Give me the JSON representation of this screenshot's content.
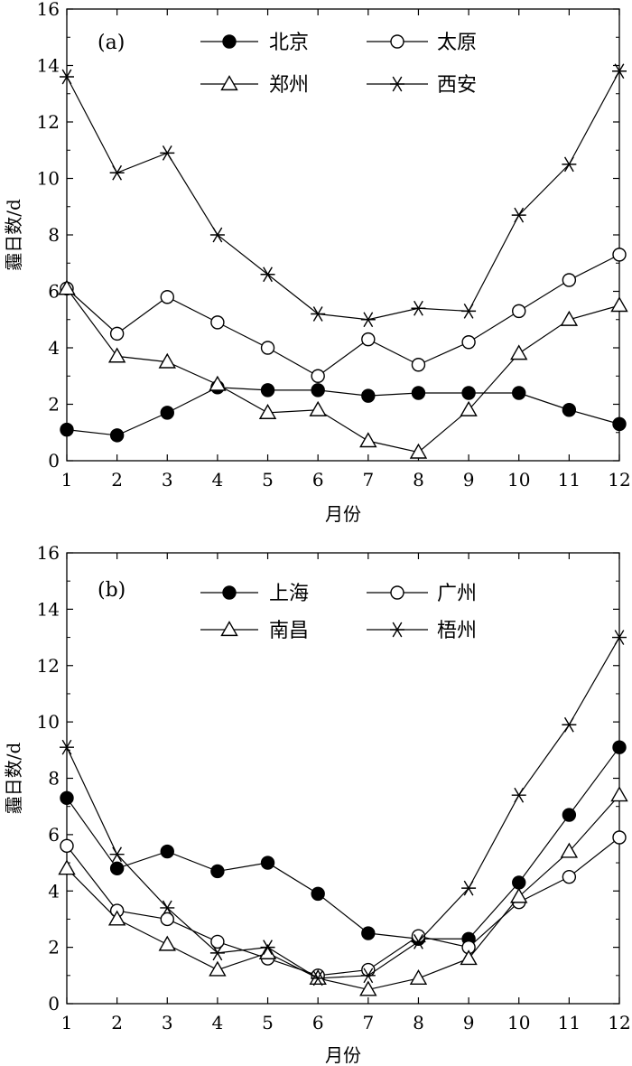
{
  "chart_data": [
    {
      "type": "line",
      "panel_label": "(a)",
      "xlabel": "月份",
      "ylabel": "霾日数/d",
      "categories": [
        1,
        2,
        3,
        4,
        5,
        6,
        7,
        8,
        9,
        10,
        11,
        12
      ],
      "x_ticks": [
        "1",
        "2",
        "3",
        "4",
        "5",
        "6",
        "7",
        "8",
        "9",
        "10",
        "11",
        "12"
      ],
      "y_ticks": [
        "0",
        "2",
        "4",
        "6",
        "8",
        "10",
        "12",
        "14",
        "16"
      ],
      "xlim": [
        1,
        12
      ],
      "ylim": [
        0,
        16
      ],
      "grid": false,
      "legend_position": "top",
      "series": [
        {
          "name": "北京",
          "marker": "filled-circle",
          "values": [
            1.1,
            0.9,
            1.7,
            2.6,
            2.5,
            2.5,
            2.3,
            2.4,
            2.4,
            2.4,
            1.8,
            1.3
          ]
        },
        {
          "name": "太原",
          "marker": "open-circle",
          "values": [
            6.1,
            4.5,
            5.8,
            4.9,
            4.0,
            3.0,
            4.3,
            3.4,
            4.2,
            5.3,
            6.4,
            7.3
          ]
        },
        {
          "name": "郑州",
          "marker": "open-triangle",
          "values": [
            6.1,
            3.7,
            3.5,
            2.7,
            1.7,
            1.8,
            0.7,
            0.3,
            1.8,
            3.8,
            5.0,
            5.5
          ]
        },
        {
          "name": "西安",
          "marker": "star",
          "values": [
            13.6,
            10.2,
            10.9,
            8.0,
            6.6,
            5.2,
            5.0,
            5.4,
            5.3,
            8.7,
            10.5,
            13.8
          ]
        }
      ]
    },
    {
      "type": "line",
      "panel_label": "(b)",
      "xlabel": "月份",
      "ylabel": "霾日数/d",
      "categories": [
        1,
        2,
        3,
        4,
        5,
        6,
        7,
        8,
        9,
        10,
        11,
        12
      ],
      "x_ticks": [
        "1",
        "2",
        "3",
        "4",
        "5",
        "6",
        "7",
        "8",
        "9",
        "10",
        "11",
        "12"
      ],
      "y_ticks": [
        "0",
        "2",
        "4",
        "6",
        "8",
        "10",
        "12",
        "14",
        "16"
      ],
      "xlim": [
        1,
        12
      ],
      "ylim": [
        0,
        16
      ],
      "grid": false,
      "legend_position": "top",
      "series": [
        {
          "name": "上海",
          "marker": "filled-circle",
          "values": [
            7.3,
            4.8,
            5.4,
            4.7,
            5.0,
            3.9,
            2.5,
            2.3,
            2.3,
            4.3,
            6.7,
            9.1
          ]
        },
        {
          "name": "广州",
          "marker": "open-circle",
          "values": [
            5.6,
            3.3,
            3.0,
            2.2,
            1.6,
            1.0,
            1.2,
            2.4,
            2.0,
            3.6,
            4.5,
            5.9
          ]
        },
        {
          "name": "南昌",
          "marker": "open-triangle",
          "values": [
            4.8,
            3.0,
            2.1,
            1.2,
            1.8,
            0.9,
            0.5,
            0.9,
            1.6,
            3.8,
            5.4,
            7.4
          ]
        },
        {
          "name": "梧州",
          "marker": "star",
          "values": [
            9.1,
            5.3,
            3.4,
            1.8,
            2.0,
            0.9,
            1.0,
            2.2,
            4.1,
            7.4,
            9.9,
            13.0
          ]
        }
      ]
    }
  ]
}
